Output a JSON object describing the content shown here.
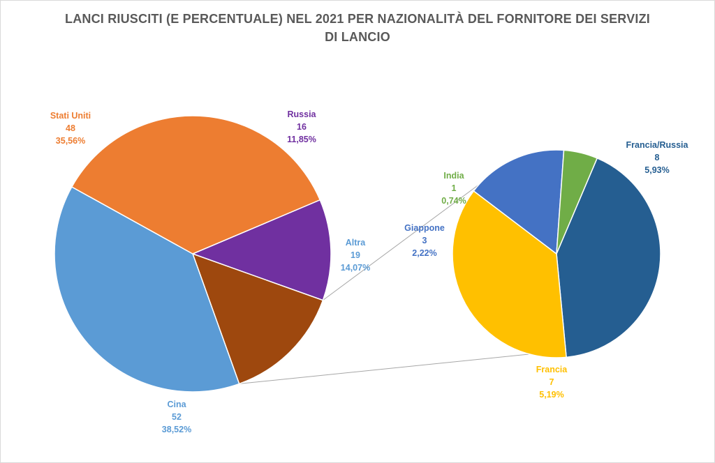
{
  "chart_data": {
    "type": "pie",
    "variant": "pie-of-pie",
    "title_line1": "LANCI RIUSCITI (E PERCENTUALE)  NEL 2021 PER NAZIONALITÀ DEL FORNITORE DEI SERVIZI",
    "title_line2": "DI LANCIO",
    "main_pie": {
      "slices": [
        {
          "name": "Russia",
          "value": 16,
          "percent": "11,85%",
          "value_label": "16",
          "color": "#7030a0"
        },
        {
          "name": "Altra",
          "value": 19,
          "percent": "14,07%",
          "value_label": "19",
          "color": "#9e480e"
        },
        {
          "name": "Cina",
          "value": 52,
          "percent": "38,52%",
          "value_label": "52",
          "color": "#5b9bd5"
        },
        {
          "name": "Stati Uniti",
          "value": 48,
          "percent": "35,56%",
          "value_label": "48",
          "color": "#ed7d31"
        }
      ]
    },
    "secondary_pie": {
      "breakdown_of": "Altra",
      "slices": [
        {
          "name": "Francia/Russia",
          "value": 8,
          "percent": "5,93%",
          "value_label": "8",
          "color": "#255e91",
          "label_color": "#255e91"
        },
        {
          "name": "Francia",
          "value": 7,
          "percent": "5,19%",
          "value_label": "7",
          "color": "#ffc000",
          "label_color": "#ffc000"
        },
        {
          "name": "Giappone",
          "value": 3,
          "percent": "2,22%",
          "value_label": "3",
          "color": "#4472c4",
          "label_color": "#4472c4"
        },
        {
          "name": "India",
          "value": 1,
          "percent": "0,74%",
          "value_label": "1",
          "color": "#70ad47",
          "label_color": "#70ad47"
        }
      ]
    },
    "label_colors": {
      "Russia": "#7030a0",
      "Altra": "#5b9bd5",
      "Cina": "#5b9bd5",
      "Stati Uniti": "#ed7d31"
    },
    "legend": "none",
    "border_color": "#d9d9d9",
    "connector_color": "#a6a6a6"
  }
}
